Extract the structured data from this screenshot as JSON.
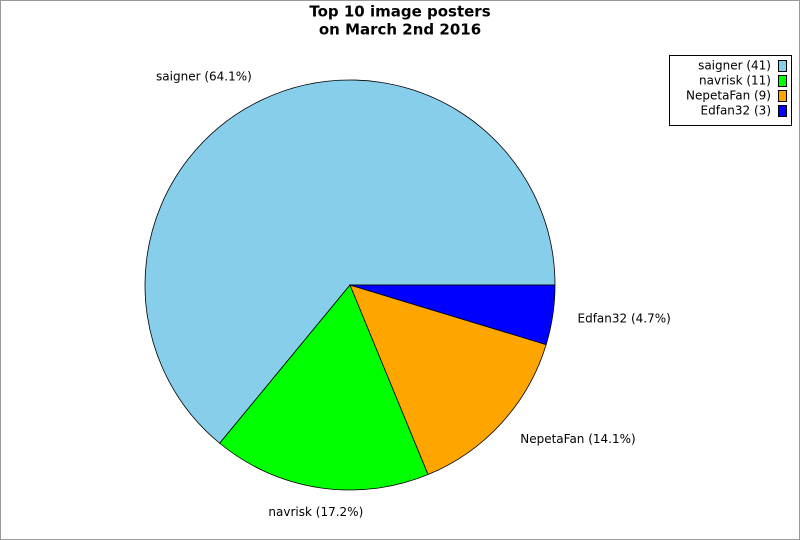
{
  "chart_data": {
    "type": "pie",
    "title": [
      "Top 10 image posters",
      "on March 2nd 2016"
    ],
    "categories": [
      "saigner",
      "navrisk",
      "NepetaFan",
      "Edfan32"
    ],
    "values": [
      64.1,
      17.2,
      14.1,
      4.7
    ],
    "value_labels": [
      "saigner (64.1%)",
      "navrisk (17.2%)",
      "NepetaFan (14.1%)",
      "Edfan32 (4.7%)"
    ],
    "counts": [
      41,
      11,
      9,
      3
    ],
    "legend_labels": [
      "saigner (41)",
      "navrisk (11)",
      "NepetaFan (9)",
      "Edfan32 (3)"
    ],
    "colors": [
      "#87ceeb",
      "#00ff00",
      "#ffa500",
      "#0000ff"
    ],
    "legend_position": "upper right"
  }
}
